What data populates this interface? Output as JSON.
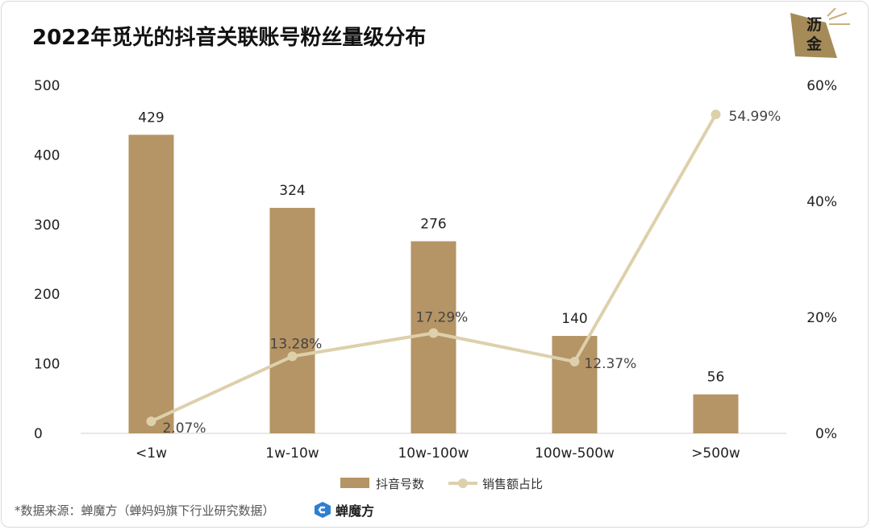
{
  "header": {
    "title": "2022年觅光的抖音关联账号粉丝量级分布",
    "logo_text_1": "沥",
    "logo_text_2": "金"
  },
  "footer": {
    "source": "*数据来源：蝉魔方（蝉妈妈旗下行业研究数据）",
    "brand": "蝉魔方"
  },
  "colors": {
    "bar": "#b59465",
    "line": "#ddd0ab",
    "logo_bg": "#a58b58"
  },
  "chart_data": {
    "type": "bar",
    "title": "2022年觅光的抖音关联账号粉丝量级分布",
    "categories": [
      "<1w",
      "1w-10w",
      "10w-100w",
      "100w-500w",
      ">500w"
    ],
    "series": [
      {
        "name": "抖音号数",
        "type": "bar",
        "axis": "left",
        "values": [
          429,
          324,
          276,
          140,
          56
        ],
        "labels": [
          "429",
          "324",
          "276",
          "140",
          "56"
        ]
      },
      {
        "name": "销售额占比",
        "type": "line",
        "axis": "right",
        "values": [
          2.07,
          13.28,
          17.29,
          12.37,
          54.99
        ],
        "labels": [
          "2.07%",
          "13.28%",
          "17.29%",
          "12.37%",
          "54.99%"
        ]
      }
    ],
    "y_left": {
      "min": 0,
      "max": 500,
      "ticks": [
        "0",
        "100",
        "200",
        "300",
        "400",
        "500"
      ]
    },
    "y_right": {
      "min": 0,
      "max": 60,
      "ticks": [
        "0%",
        "20%",
        "40%",
        "60%"
      ]
    },
    "legend": "bottom-center",
    "grid": false
  }
}
